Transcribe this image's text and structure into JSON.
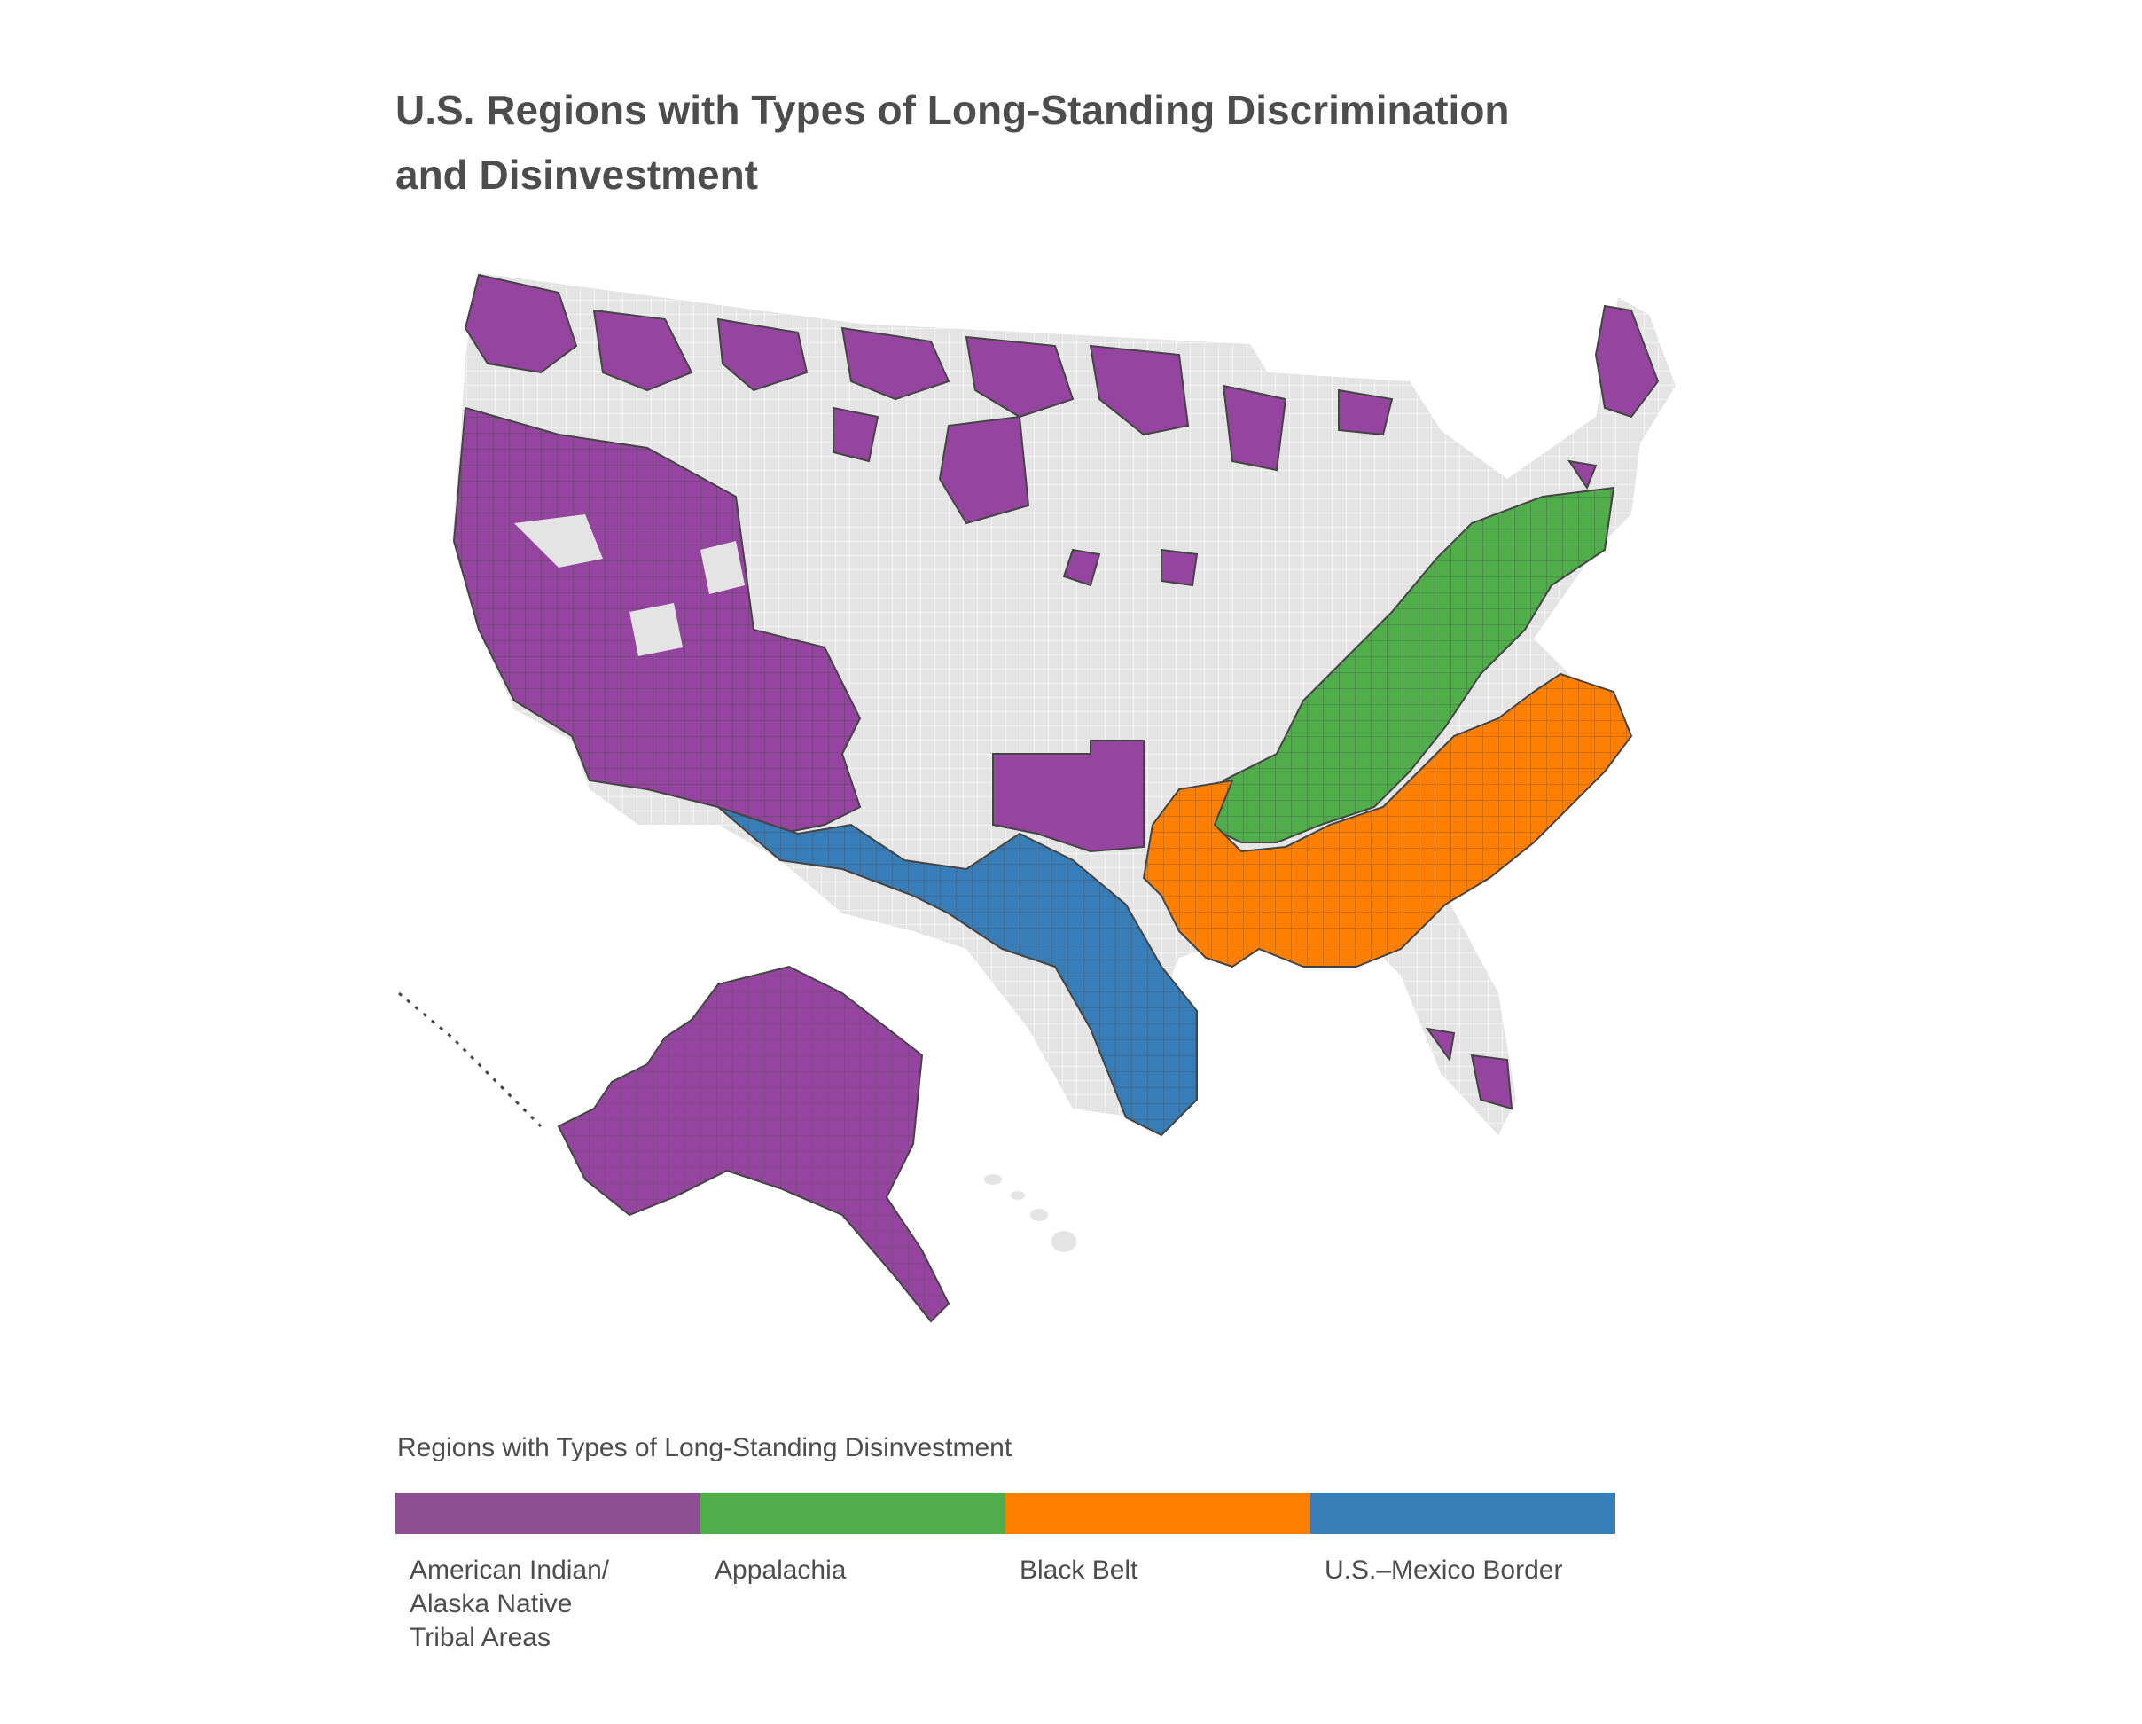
{
  "title_line1": "U.S. Regions with Types of Long-Standing Discrimination",
  "title_line2": "and Disinvestment",
  "legend": {
    "title": "Regions with Types of Long-Standing Disinvestment",
    "items": [
      {
        "label": "American Indian/\nAlaska Native\nTribal Areas",
        "color": "#8e4f91"
      },
      {
        "label": "Appalachia",
        "color": "#4fae4a"
      },
      {
        "label": "Black Belt",
        "color": "#ff8000"
      },
      {
        "label": "U.S.–Mexico Border",
        "color": "#377eb8"
      }
    ]
  },
  "colors": {
    "base_land": "#e4e4e4",
    "county_line": "#ffffff",
    "tribal": "#9545a0",
    "appalachia": "#4fae4a",
    "black_belt": "#ff8000",
    "border": "#377eb8",
    "region_outline": "#444444"
  }
}
